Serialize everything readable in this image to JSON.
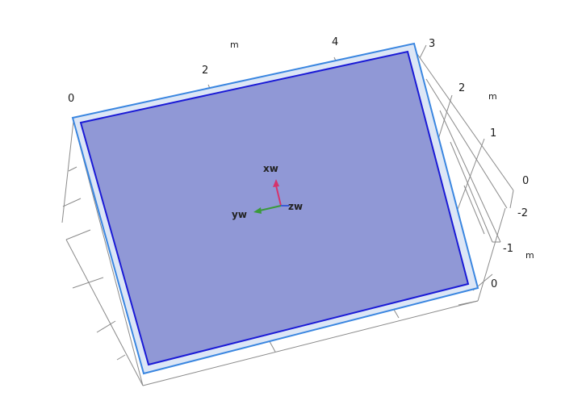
{
  "viewport": {
    "background": "#ffffff",
    "grid_color": "#7a7a7a",
    "plate_fill": "#9098d6",
    "plate_edge": "#1a1ad6",
    "selection_outline": "#3a86e0",
    "selection_fill": "#dce6f6"
  },
  "axis_top": {
    "ticks": [
      "0",
      "2",
      "4"
    ],
    "unit": "m"
  },
  "axis_right_upper": {
    "ticks": [
      "3",
      "2",
      "1",
      "0"
    ],
    "unit": "m"
  },
  "axis_right_lower": {
    "ticks": [
      "-2",
      "-1",
      "0"
    ],
    "unit": "m"
  },
  "triad": {
    "x_label": "xw",
    "y_label": "yw",
    "z_label": "zw",
    "x_color": "#d6336c",
    "y_color": "#3a9a3a",
    "z_color": "#3a5ad6"
  }
}
